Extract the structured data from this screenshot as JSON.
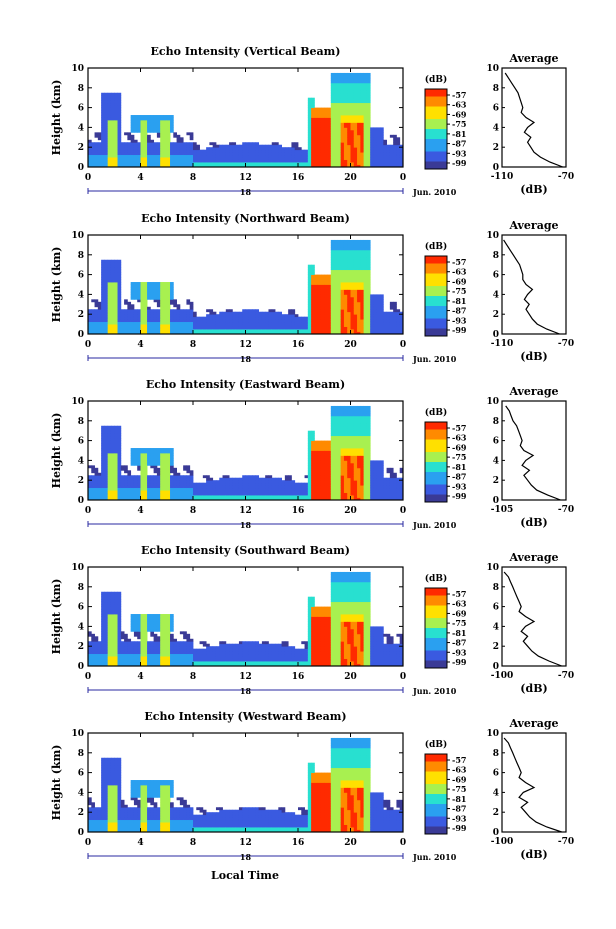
{
  "figure": {
    "xlabel": "Local Time",
    "date_label": "Jun. 2010",
    "day_label": "18"
  },
  "colorbar": {
    "unit": "(dB)",
    "ticks": [
      "-57",
      "-63",
      "-69",
      "-75",
      "-81",
      "-87",
      "-93",
      "-99"
    ],
    "colors": [
      "#ff2a00",
      "#ff8a00",
      "#ffe000",
      "#a8f050",
      "#28e0d0",
      "#2aa0f0",
      "#3a5ae0",
      "#3a3a96"
    ]
  },
  "chart_data": [
    {
      "type": "heatmap",
      "title": "Echo Intensity (Vertical Beam)",
      "ylabel": "Height (km)",
      "xticks": [
        "0",
        "4",
        "8",
        "12",
        "16",
        "20",
        "0"
      ],
      "yticks": [
        "0",
        "2",
        "4",
        "6",
        "8",
        "10"
      ],
      "xlim": [
        0,
        24
      ],
      "ylim": [
        0,
        10
      ],
      "profile": {
        "title": "Average",
        "xlabel": "(dB)",
        "xticks": [
          "-110",
          "-70"
        ],
        "xlim": [
          -110,
          -70
        ],
        "yticks": [
          "0",
          "2",
          "4",
          "6",
          "8",
          "10"
        ],
        "height_km": [
          0,
          0.5,
          1,
          1.5,
          2,
          2.5,
          3,
          3.5,
          4,
          4.5,
          5,
          5.5,
          6,
          6.5,
          7,
          7.5,
          8,
          8.5,
          9,
          9.5
        ],
        "values_db": [
          -72,
          -80,
          -86,
          -90,
          -92,
          -94,
          -92,
          -96,
          -94,
          -90,
          -95,
          -98,
          -97,
          -98,
          -99,
          -100,
          -102,
          -104,
          -106,
          -108
        ]
      }
    },
    {
      "type": "heatmap",
      "title": "Echo Intensity (Northward Beam)",
      "ylabel": "Height (km)",
      "xticks": [
        "0",
        "4",
        "8",
        "12",
        "16",
        "20",
        "0"
      ],
      "yticks": [
        "0",
        "2",
        "4",
        "6",
        "8",
        "10"
      ],
      "xlim": [
        0,
        24
      ],
      "ylim": [
        0,
        10
      ],
      "profile": {
        "title": "Average",
        "xlabel": "(dB)",
        "xticks": [
          "-110",
          "-70"
        ],
        "xlim": [
          -110,
          -70
        ],
        "yticks": [
          "0",
          "2",
          "4",
          "6",
          "8",
          "10"
        ],
        "height_km": [
          0,
          0.5,
          1,
          1.5,
          2,
          2.5,
          3,
          3.5,
          4,
          4.5,
          5,
          5.5,
          6,
          6.5,
          7,
          7.5,
          8,
          8.5,
          9,
          9.5
        ],
        "values_db": [
          -74,
          -82,
          -88,
          -91,
          -93,
          -95,
          -93,
          -96,
          -94,
          -91,
          -95,
          -97,
          -97,
          -98,
          -99,
          -101,
          -103,
          -105,
          -107,
          -109
        ]
      }
    },
    {
      "type": "heatmap",
      "title": "Echo Intensity (Eastward Beam)",
      "ylabel": "Height (km)",
      "xticks": [
        "0",
        "4",
        "8",
        "12",
        "16",
        "20",
        "0"
      ],
      "yticks": [
        "0",
        "2",
        "4",
        "6",
        "8",
        "10"
      ],
      "xlim": [
        0,
        24
      ],
      "ylim": [
        0,
        10
      ],
      "profile": {
        "title": "Average",
        "xlabel": "(dB)",
        "xticks": [
          "-105",
          "-70"
        ],
        "xlim": [
          -105,
          -70
        ],
        "yticks": [
          "0",
          "2",
          "4",
          "6",
          "8",
          "10"
        ],
        "height_km": [
          0,
          0.5,
          1,
          1.5,
          2,
          2.5,
          3,
          3.5,
          4,
          4.5,
          5,
          5.5,
          6,
          6.5,
          7,
          7.5,
          8,
          8.5,
          9,
          9.5
        ],
        "values_db": [
          -73,
          -80,
          -86,
          -89,
          -91,
          -93,
          -90,
          -94,
          -92,
          -88,
          -93,
          -95,
          -94,
          -95,
          -96,
          -97,
          -99,
          -100,
          -101,
          -103
        ]
      }
    },
    {
      "type": "heatmap",
      "title": "Echo Intensity (Southward Beam)",
      "ylabel": "Height (km)",
      "xticks": [
        "0",
        "4",
        "8",
        "12",
        "16",
        "20",
        "0"
      ],
      "yticks": [
        "0",
        "2",
        "4",
        "6",
        "8",
        "10"
      ],
      "xlim": [
        0,
        24
      ],
      "ylim": [
        0,
        10
      ],
      "profile": {
        "title": "Average",
        "xlabel": "(dB)",
        "xticks": [
          "-100",
          "-70"
        ],
        "xlim": [
          -100,
          -70
        ],
        "yticks": [
          "0",
          "2",
          "4",
          "6",
          "8",
          "10"
        ],
        "height_km": [
          0,
          0.5,
          1,
          1.5,
          2,
          2.5,
          3,
          3.5,
          4,
          4.5,
          5,
          5.5,
          6,
          6.5,
          7,
          7.5,
          8,
          8.5,
          9,
          9.5
        ],
        "values_db": [
          -72,
          -78,
          -83,
          -86,
          -88,
          -90,
          -88,
          -91,
          -89,
          -85,
          -89,
          -92,
          -91,
          -92,
          -93,
          -94,
          -95,
          -96,
          -97,
          -99
        ]
      }
    },
    {
      "type": "heatmap",
      "title": "Echo Intensity (Westward Beam)",
      "ylabel": "Height (km)",
      "xticks": [
        "0",
        "4",
        "8",
        "12",
        "16",
        "20",
        "0"
      ],
      "yticks": [
        "0",
        "2",
        "4",
        "6",
        "8",
        "10"
      ],
      "xlim": [
        0,
        24
      ],
      "ylim": [
        0,
        10
      ],
      "profile": {
        "title": "Average",
        "xlabel": "(dB)",
        "xticks": [
          "-100",
          "-70"
        ],
        "xlim": [
          -100,
          -70
        ],
        "yticks": [
          "0",
          "2",
          "4",
          "6",
          "8",
          "10"
        ],
        "height_km": [
          0,
          0.5,
          1,
          1.5,
          2,
          2.5,
          3,
          3.5,
          4,
          4.5,
          5,
          5.5,
          6,
          6.5,
          7,
          7.5,
          8,
          8.5,
          9,
          9.5
        ],
        "values_db": [
          -72,
          -79,
          -84,
          -87,
          -89,
          -91,
          -88,
          -92,
          -90,
          -85,
          -89,
          -92,
          -91,
          -92,
          -93,
          -94,
          -95,
          -96,
          -97,
          -99
        ]
      }
    }
  ]
}
